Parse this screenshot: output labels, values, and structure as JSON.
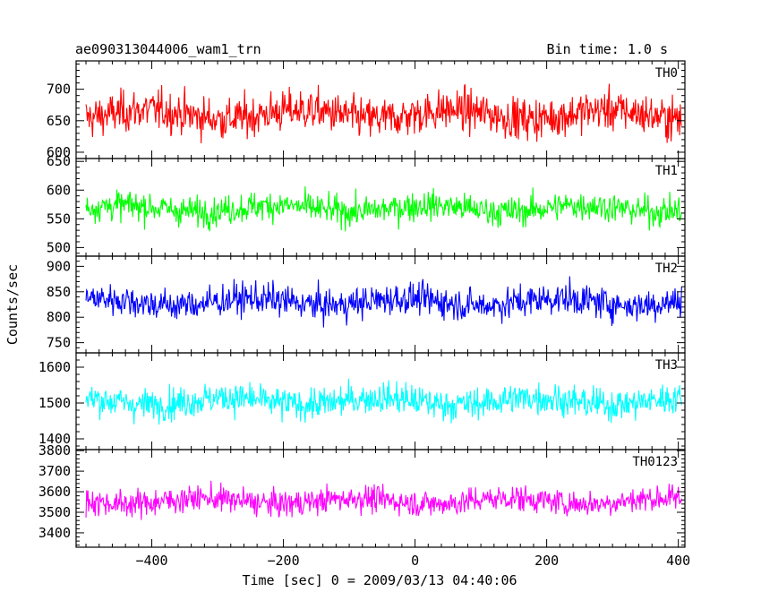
{
  "header": {
    "title": "ae090313044006_wam1_trn",
    "bin_time": "Bin time: 1.0 s"
  },
  "chart_data": {
    "type": "line",
    "xlabel": "Time [sec] 0 = 2009/03/13 04:40:06",
    "ylabel": "Counts/sec",
    "xlim": [
      -515,
      410
    ],
    "x_ticks": [
      -400,
      -200,
      0,
      200,
      400
    ],
    "x_step": 1.0,
    "grid": false,
    "series": [
      {
        "name": "TH0",
        "color": "#ff0000",
        "ylim": [
          590,
          745
        ],
        "y_ticks": [
          600,
          650,
          700
        ],
        "mean": 660,
        "sd": 28,
        "clip_top": true
      },
      {
        "name": "TH1",
        "color": "#00ff00",
        "ylim": [
          485,
          655
        ],
        "y_ticks": [
          500,
          550,
          600,
          650
        ],
        "mean": 568,
        "sd": 22,
        "clip_top": false
      },
      {
        "name": "TH2",
        "color": "#0000ff",
        "ylim": [
          730,
          920
        ],
        "y_ticks": [
          750,
          800,
          850,
          900
        ],
        "mean": 830,
        "sd": 27,
        "clip_top": false
      },
      {
        "name": "TH3",
        "color": "#00ffff",
        "ylim": [
          1370,
          1640
        ],
        "y_ticks": [
          1400,
          1500,
          1600
        ],
        "mean": 1505,
        "sd": 38,
        "clip_top": false
      },
      {
        "name": "TH0123",
        "color": "#ff00ff",
        "ylim": [
          3330,
          3805
        ],
        "y_ticks": [
          3400,
          3500,
          3600,
          3700,
          3800
        ],
        "mean": 3555,
        "sd": 55,
        "clip_top": false
      }
    ]
  }
}
